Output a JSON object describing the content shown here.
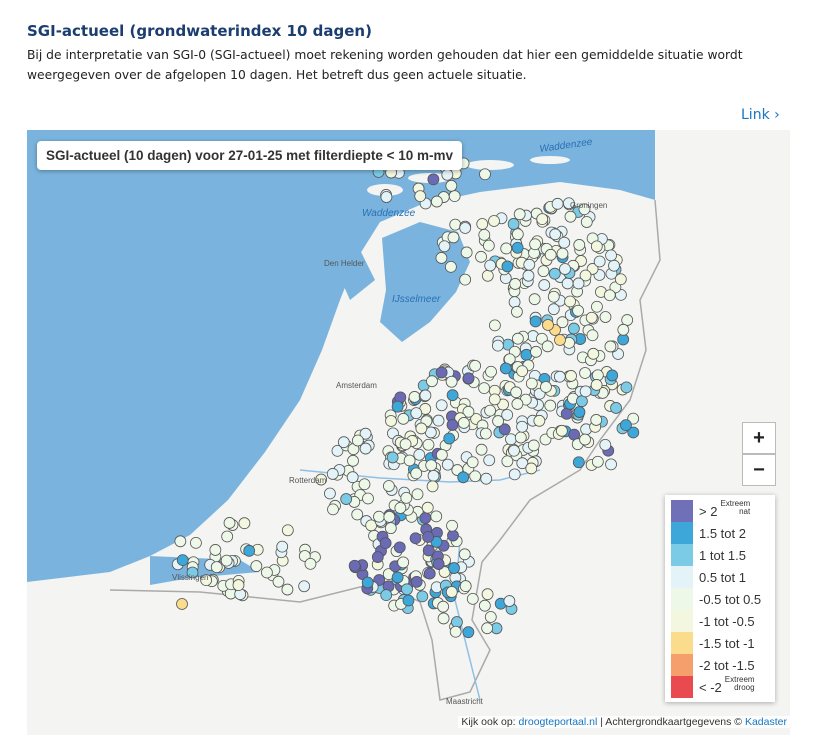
{
  "header": {
    "title": "SGI-actueel (grondwaterindex 10 dagen)",
    "description": "Bij de interpretatie van SGI-0 (SGI-actueel) moet rekening worden gehouden dat hier een gemiddelde situatie wordt weergegeven over de afgelopen 10 dagen. Het betreft dus geen actuele situatie.",
    "link": "Link"
  },
  "map": {
    "title": "SGI-actueel (10 dagen) voor 27-01-25 met filterdiepte < 10 m-mv",
    "places": [
      "Waddenzee",
      "Waddenzee",
      "Groningen",
      "Den Helder",
      "IJsselmeer",
      "Amsterdam",
      "Rotterdam",
      "Vlissingen",
      "Maastricht"
    ],
    "zoom": [
      "+",
      "−"
    ],
    "legend": [
      {
        "label": "> 2",
        "note": [
          "Extreem",
          "nat"
        ],
        "color": "#7070b8"
      },
      {
        "label": "1.5 tot 2",
        "color": "#3da7da"
      },
      {
        "label": "1 tot 1.5",
        "color": "#7ccbe6"
      },
      {
        "label": "0.5 tot 1",
        "color": "#e3f3f8"
      },
      {
        "label": "-0.5 tot 0.5",
        "color": "#eef8e8"
      },
      {
        "label": "-1 tot -0.5",
        "color": "#f3f7df"
      },
      {
        "label": "-1.5 tot -1",
        "color": "#fbdb8c"
      },
      {
        "label": "-2 tot -1.5",
        "color": "#f5a06c"
      },
      {
        "label": "< -2",
        "note": [
          "Extreem",
          "droog"
        ],
        "color": "#e84a50"
      }
    ],
    "attribution": [
      "Kijk ook op: ",
      "droogteportaal.nl",
      " | Achtergrondkaartgegevens © ",
      "Kadaster"
    ]
  }
}
